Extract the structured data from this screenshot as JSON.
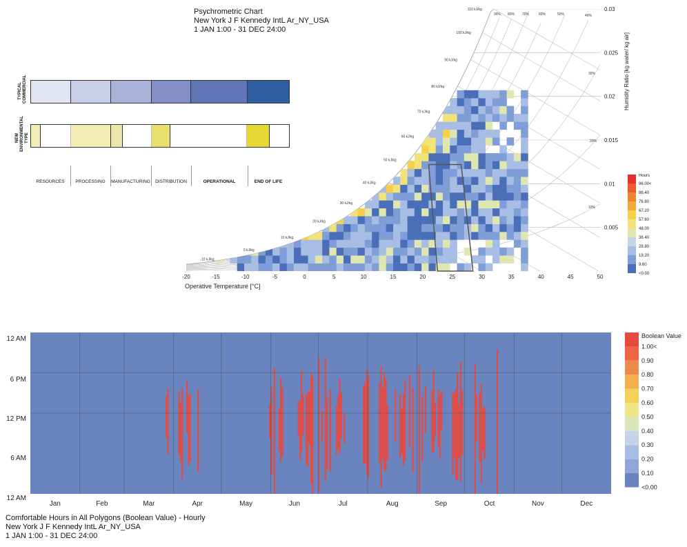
{
  "psychro": {
    "title": "Psychrometric Chart",
    "location": "New York J F Kennedy IntL Ar_NY_USA",
    "period": "1 JAN 1:00 - 31 DEC 24:00"
  },
  "stage_table": {
    "rows": [
      {
        "label": "TYPICAL COMMERCIAL",
        "segments": [
          {
            "w": 58,
            "color": "#e3e5f2"
          },
          {
            "w": 58,
            "color": "#c9cfe7"
          },
          {
            "w": 59,
            "color": "#a8b3da"
          },
          {
            "w": 58,
            "color": "#8290c7"
          },
          {
            "w": 82,
            "color": "#6176b6"
          },
          {
            "w": 60,
            "color": "#2f5ea5"
          }
        ]
      },
      {
        "label": "NEW ENVIRONMENTAL TYPE",
        "segments": [
          {
            "w": 14,
            "color": "#f2edb7"
          },
          {
            "w": 44,
            "color": "#ffffff"
          },
          {
            "w": 58,
            "color": "#f3edb4"
          },
          {
            "w": 17,
            "color": "#ece6a8"
          },
          {
            "w": 42,
            "color": "#ffffff"
          },
          {
            "w": 28,
            "color": "#e9df70"
          },
          {
            "w": 111,
            "color": "#ffffff"
          },
          {
            "w": 33,
            "color": "#e5d834"
          },
          {
            "w": 28,
            "color": "#ffffff"
          }
        ]
      }
    ],
    "stages": [
      "RESOURCES",
      "PROCESSING",
      "MANUFACTURING",
      "DISTRIBUTION",
      "OPERATIONAL",
      "END OF LIFE"
    ]
  },
  "chart_data": [
    {
      "type": "heatmap",
      "title": "Psychrometric Chart",
      "xlabel": "Operative Temperature [°C]",
      "ylabel": "Humidity Ratio [kg water/ kg air]",
      "x_ticks": [
        "-20",
        "-15",
        "-10",
        "-5",
        "0",
        "5",
        "10",
        "15",
        "20",
        "25",
        "30",
        "35",
        "40",
        "45",
        "50"
      ],
      "y_ticks": [
        "0.005",
        "0.01",
        "0.015",
        "0.02",
        "0.025",
        "0.03"
      ],
      "xlim": [
        -20,
        50
      ],
      "ylim": [
        0,
        0.03
      ],
      "enthalpy_labels": [
        "-10 kJ/kg",
        "0 kJ/kg",
        "10 kJ/kg",
        "20 kJ/kg",
        "30 kJ/kg",
        "40 kJ/kg",
        "50 kJ/kg",
        "60 kJ/kg",
        "70 kJ/kg",
        "80 kJ/kg",
        "90 kJ/kg",
        "100 kJ/kg",
        "110 kJ/kg"
      ],
      "rh_labels": [
        "90%",
        "80%",
        "70%",
        "60%",
        "50%",
        "40%",
        "30%",
        "20%",
        "10%"
      ],
      "legend": {
        "title": "Hours",
        "labels": [
          "96.00<",
          "86.40",
          "76.80",
          "67.20",
          "57.60",
          "48.00",
          "38.40",
          "28.80",
          "19.20",
          "9.60",
          "<0.00"
        ],
        "colors": [
          "#e8302a",
          "#ef5a2b",
          "#f2832f",
          "#f5a838",
          "#f7cf48",
          "#f2e27a",
          "#dfe7b0",
          "#c5d6e4",
          "#a7bde4",
          "#7f9dd6",
          "#4a6fb8"
        ]
      },
      "comfort_polygon": [
        [
          22.5,
          0
        ],
        [
          21,
          0.0122
        ],
        [
          26.5,
          0.0122
        ],
        [
          28.5,
          0
        ]
      ]
    },
    {
      "type": "heatmap",
      "title": "Comfortable Hours in All Polygons (Boolean Value) - Hourly",
      "location": "New York J F Kennedy IntL Ar_NY_USA",
      "period": "1 JAN 1:00 - 31 DEC 24:00",
      "x_ticks": [
        "Jan",
        "Feb",
        "Mar",
        "Apr",
        "May",
        "Jun",
        "Jul",
        "Aug",
        "Sep",
        "Oct",
        "Nov",
        "Dec"
      ],
      "y_ticks": [
        "12 AM",
        "6 PM",
        "12 PM",
        "6 AM",
        "12 AM"
      ],
      "legend": {
        "title": "Boolean Value",
        "labels": [
          "1.00<",
          "0.90",
          "0.80",
          "0.70",
          "0.60",
          "0.50",
          "0.40",
          "0.30",
          "0.20",
          "0.10",
          "<0.00"
        ],
        "colors": [
          "#e8493f",
          "#ec6444",
          "#ef8a4a",
          "#f3af4e",
          "#f5d159",
          "#eee58a",
          "#d9e4b7",
          "#c5d3e6",
          "#a9bde3",
          "#8ea6da",
          "#6a84c0"
        ]
      },
      "comfortable_day_ranges": [
        [
          85,
          86
        ],
        [
          93,
          100
        ],
        [
          105,
          106
        ],
        [
          150,
          158
        ],
        [
          168,
          198
        ],
        [
          208,
          212
        ],
        [
          219,
          224
        ],
        [
          229,
          258
        ],
        [
          265,
          272
        ],
        [
          276,
          286
        ],
        [
          292,
          295
        ]
      ]
    }
  ]
}
